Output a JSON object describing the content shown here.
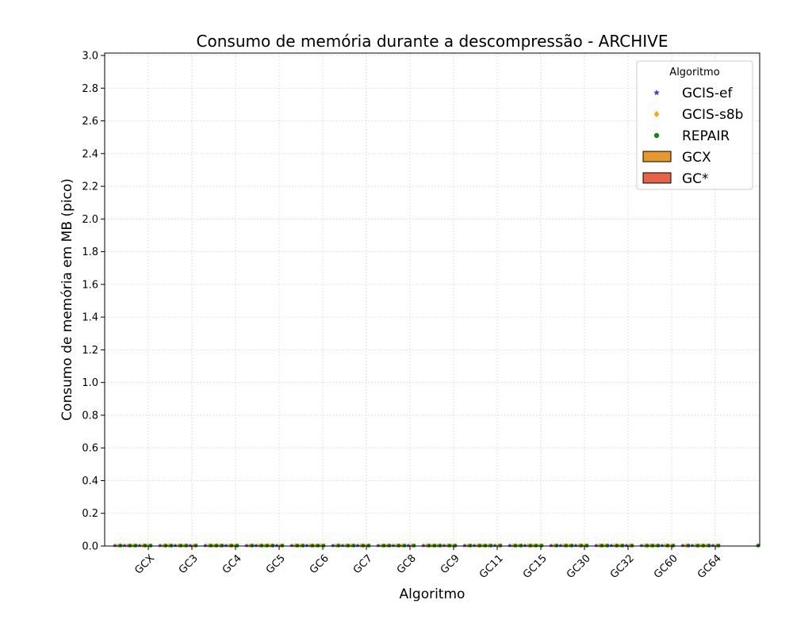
{
  "chart_data": {
    "type": "scatter",
    "title": "Consumo de memória durante a descompressão -  ARCHIVE",
    "xlabel": "Algoritmo",
    "ylabel": "Consumo de memória em MB (pico)",
    "categories": [
      "GCX",
      "GC3",
      "GC4",
      "GC5",
      "GC6",
      "GC7",
      "GC8",
      "GC9",
      "GC11",
      "GC15",
      "GC30",
      "GC32",
      "GC60",
      "GC64"
    ],
    "ylim": [
      0,
      3.0
    ],
    "yticks": [
      "0.0",
      "0.2",
      "0.4",
      "0.6",
      "0.8",
      "1.0",
      "1.2",
      "1.4",
      "1.6",
      "1.8",
      "2.0",
      "2.2",
      "2.4",
      "2.6",
      "2.8",
      "3.0"
    ],
    "grid": true,
    "legend": {
      "title": "Algoritmo",
      "placement": "top-right",
      "entries": [
        {
          "label": "GCIS-ef",
          "marker": "star",
          "color": "#3f3fd9"
        },
        {
          "label": "GCIS-s8b",
          "marker": "diamond",
          "color": "#ffa500"
        },
        {
          "label": "REPAIR",
          "marker": "circle",
          "color": "#138a13"
        },
        {
          "label": "GCX",
          "marker": "patch",
          "color": "#e8982a"
        },
        {
          "label": "GC*",
          "marker": "patch",
          "color": "#e8624a"
        }
      ]
    },
    "series": [
      {
        "name": "GCIS-ef",
        "marker": "star",
        "color": "#3f3fd9",
        "values": [
          0.003,
          0.003,
          0.003,
          0.003,
          0.003,
          0.003,
          0.003,
          0.003,
          0.003,
          0.003,
          0.003,
          0.003,
          0.003,
          0.003
        ]
      },
      {
        "name": "GCIS-s8b",
        "marker": "diamond",
        "color": "#ffa500",
        "values": [
          0.003,
          0.003,
          0.003,
          0.003,
          0.003,
          0.003,
          0.003,
          0.003,
          0.003,
          0.003,
          0.003,
          0.003,
          0.003,
          0.003
        ]
      },
      {
        "name": "REPAIR",
        "marker": "circle",
        "color": "#138a13",
        "values": [
          0.003,
          0.003,
          0.003,
          0.003,
          0.003,
          0.003,
          0.003,
          0.003,
          0.003,
          0.003,
          0.003,
          0.003,
          0.003,
          0.003
        ]
      }
    ]
  }
}
